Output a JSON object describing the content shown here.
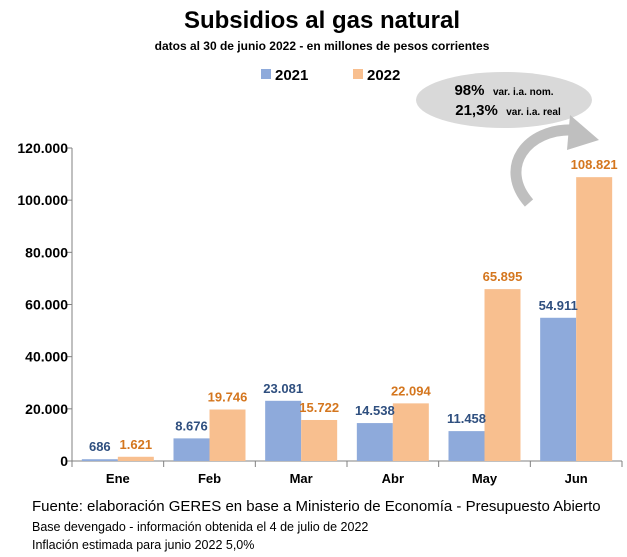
{
  "chart_data": {
    "type": "bar",
    "title": "Subsidios al gas natural",
    "subtitle": "datos al 30 de junio 2022 - en millones de pesos corrientes",
    "categories": [
      "Ene",
      "Feb",
      "Mar",
      "Abr",
      "May",
      "Jun"
    ],
    "series": [
      {
        "name": "2021",
        "values": [
          686,
          8676,
          23081,
          14538,
          11458,
          54911
        ],
        "labels": [
          "686",
          "8.676",
          "23.081",
          "14.538",
          "11.458",
          "54.911"
        ]
      },
      {
        "name": "2022",
        "values": [
          1621,
          19746,
          15722,
          22094,
          65895,
          108821
        ],
        "labels": [
          "1.621",
          "19.746",
          "15.722",
          "22.094",
          "65.895",
          "108.821"
        ]
      }
    ],
    "ylim": [
      0,
      120000
    ],
    "yticks": [
      0,
      20000,
      40000,
      60000,
      80000,
      100000,
      120000
    ],
    "ytick_labels": [
      "0",
      "20.000",
      "40.000",
      "60.000",
      "80.000",
      "100.000",
      "120.000"
    ],
    "grid": false,
    "legend_position": "top",
    "colors": {
      "2021": "#8eaadb",
      "2022": "#f8bf8f",
      "label_2021": "#2f4f7f",
      "label_2022": "#d4761e"
    },
    "annotation": {
      "line1_value": "98%",
      "line1_text": "var. i.a. nom.",
      "line2_value": "21,3%",
      "line2_text": "var. i.a. real"
    }
  },
  "footer": {
    "source": "Fuente: elaboración GERES en base a Ministerio de Economía - Presupuesto Abierto",
    "note1": "Base devengado - información obtenida el 4 de julio de 2022",
    "note2": "Inflación estimada para junio 2022 5,0%"
  }
}
